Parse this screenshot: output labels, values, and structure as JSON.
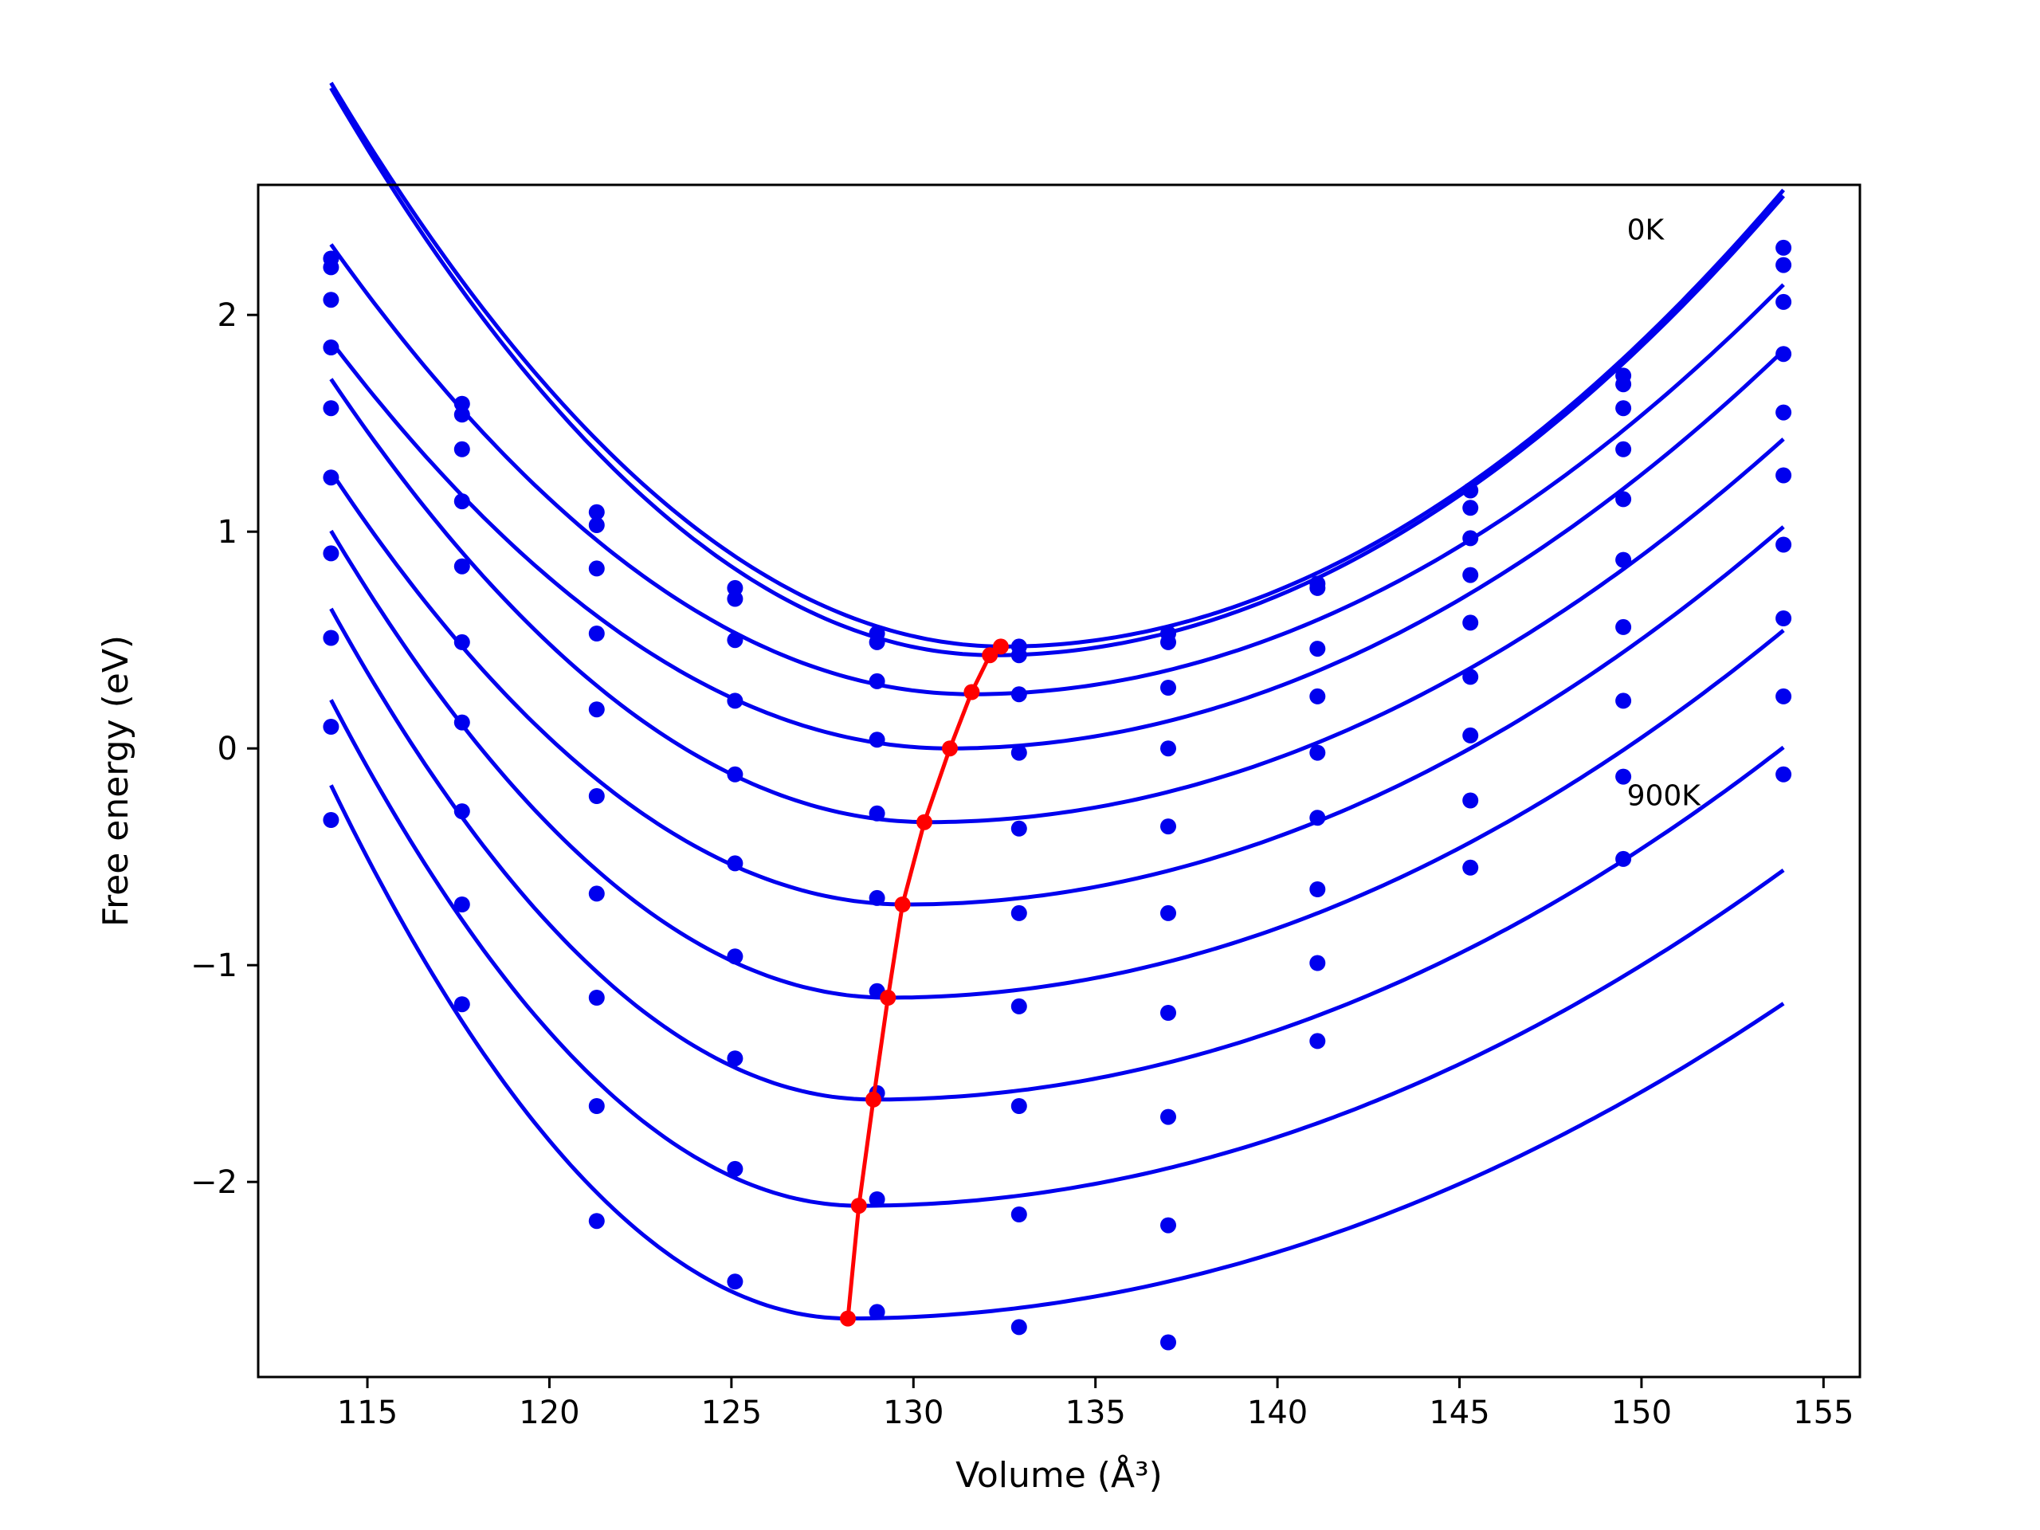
{
  "chart_data": {
    "type": "line",
    "title": "",
    "xlabel": "Volume (Å³)",
    "ylabel": "Free energy (eV)",
    "xlim": [
      112,
      156
    ],
    "ylim": [
      -2.9,
      2.6
    ],
    "xticks": [
      115,
      120,
      125,
      130,
      135,
      140,
      145,
      150,
      155
    ],
    "yticks": [
      -2,
      -1,
      0,
      1,
      2
    ],
    "xtick_labels": [
      "115",
      "120",
      "125",
      "130",
      "135",
      "140",
      "145",
      "150",
      "155"
    ],
    "ytick_labels": [
      "−2",
      "−1",
      "0",
      "1",
      "2"
    ],
    "grid": false,
    "legend": "none",
    "annotations": [
      {
        "text": "0K",
        "x": 149.6,
        "y": 2.4
      },
      {
        "text": "900K",
        "x": 149.6,
        "y": -0.21
      }
    ],
    "colors": {
      "series": "#0000ee",
      "minima": "#ff0000",
      "axis": "#000000"
    },
    "x": [
      114.0,
      117.6,
      121.3,
      125.1,
      129.0,
      132.9,
      137.0,
      141.1,
      145.3,
      149.5,
      153.9
    ],
    "series": [
      {
        "values": [
          2.26,
          1.59,
          1.09,
          0.74,
          0.53,
          0.47,
          0.53,
          0.76,
          1.19,
          1.72,
          2.31
        ],
        "fit_min": [
          132.5,
          0.47
        ],
        "fit_k": [
          0.0076,
          0.0046
        ]
      },
      {
        "values": [
          2.22,
          1.54,
          1.03,
          0.69,
          0.49,
          0.43,
          0.49,
          0.74,
          1.11,
          1.68,
          2.23
        ],
        "fit_min": [
          132.2,
          0.43
        ],
        "fit_k": [
          0.0079,
          0.0045
        ]
      },
      {
        "values": [
          2.07,
          1.38,
          0.83,
          0.5,
          0.31,
          0.25,
          0.28,
          0.46,
          0.97,
          1.57,
          2.06
        ],
        "fit_min": [
          131.6,
          0.25
        ],
        "fit_k": [
          0.0067,
          0.0038
        ]
      },
      {
        "values": [
          1.85,
          1.14,
          0.53,
          0.22,
          0.04,
          -0.02,
          -0.0,
          0.24,
          0.8,
          1.38,
          1.82
        ],
        "fit_min": [
          131.0,
          0.0
        ],
        "fit_k": [
          0.0065,
          0.0035
        ]
      },
      {
        "values": [
          1.57,
          0.84,
          0.18,
          -0.12,
          -0.3,
          -0.37,
          -0.36,
          -0.02,
          0.58,
          1.15,
          1.55
        ],
        "fit_min": [
          130.4,
          -0.34
        ],
        "fit_k": [
          0.0076,
          0.0032
        ]
      },
      {
        "values": [
          1.25,
          0.49,
          -0.22,
          -0.53,
          -0.69,
          -0.76,
          -0.76,
          -0.32,
          0.33,
          0.87,
          1.26
        ],
        "fit_min": [
          129.8,
          -0.72
        ],
        "fit_k": [
          0.008,
          0.003
        ]
      },
      {
        "values": [
          0.9,
          0.12,
          -0.67,
          -0.96,
          -1.12,
          -1.19,
          -1.22,
          -0.65,
          0.06,
          0.56,
          0.94
        ],
        "fit_min": [
          129.3,
          -1.15
        ],
        "fit_k": [
          0.0092,
          0.0028
        ]
      },
      {
        "values": [
          0.51,
          -0.29,
          -1.15,
          -1.43,
          -1.59,
          -1.65,
          -1.7,
          -0.99,
          -0.24,
          0.22,
          0.6
        ],
        "fit_min": [
          128.9,
          -1.62
        ],
        "fit_k": [
          0.0102,
          0.0026
        ]
      },
      {
        "values": [
          0.1,
          -0.72,
          -1.65,
          -1.94,
          -2.08,
          -2.15,
          -2.2,
          -1.35,
          -0.55,
          -0.13,
          0.24
        ],
        "fit_min": [
          128.5,
          -2.11
        ],
        "fit_k": [
          0.0111,
          0.0024
        ]
      },
      {
        "values": [
          -0.33,
          -1.18,
          -2.18,
          -2.46,
          -2.6,
          -2.67,
          -2.74,
          null,
          null,
          -0.51,
          -0.12
        ],
        "fit_min": [
          128.2,
          -2.63
        ],
        "fit_k": [
          0.0122,
          0.0022
        ]
      }
    ],
    "minima": {
      "x": [
        132.4,
        132.1,
        131.6,
        131.0,
        130.3,
        129.7,
        129.3,
        128.9,
        128.5,
        128.2
      ],
      "y": [
        0.47,
        0.43,
        0.26,
        0.0,
        -0.34,
        -0.72,
        -1.15,
        -1.62,
        -2.11,
        -2.63
      ]
    }
  }
}
